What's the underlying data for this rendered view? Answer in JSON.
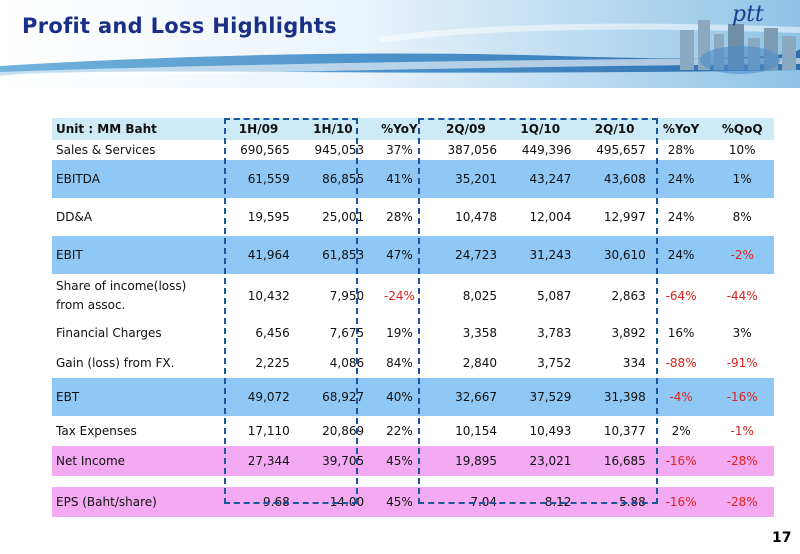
{
  "title": "Profit and Loss Highlights",
  "logo_text": "ptt",
  "page_number": "17",
  "table": {
    "headers": [
      "Unit : MM Baht",
      "1H/09",
      "1H/10",
      "%YoY",
      "2Q/09",
      "1Q/10",
      "2Q/10",
      "%YoY",
      "%QoQ"
    ],
    "rows": [
      {
        "label": "Sales & Services",
        "values": [
          "690,565",
          "945,053",
          "37%",
          "387,056",
          "449,396",
          "495,657",
          "28%",
          "10%"
        ]
      },
      {
        "label": "EBITDA",
        "values": [
          "61,559",
          "86,855",
          "41%",
          "35,201",
          "43,247",
          "43,608",
          "24%",
          "1%"
        ]
      },
      {
        "label": "DD&A",
        "values": [
          "19,595",
          "25,001",
          "28%",
          "10,478",
          "12,004",
          "12,997",
          "24%",
          "8%"
        ]
      },
      {
        "label": "EBIT",
        "values": [
          "41,964",
          "61,853",
          "47%",
          "24,723",
          "31,243",
          "30,610",
          "24%",
          "-2%"
        ]
      },
      {
        "label": "Share of income(loss)",
        "label2": "from assoc.",
        "values": [
          "10,432",
          "7,950",
          "-24%",
          "8,025",
          "5,087",
          "2,863",
          "-64%",
          "-44%"
        ]
      },
      {
        "label": "Financial Charges",
        "values": [
          "6,456",
          "7,675",
          "19%",
          "3,358",
          "3,783",
          "3,892",
          "16%",
          "3%"
        ]
      },
      {
        "label": "Gain (loss) from FX.",
        "values": [
          "2,225",
          "4,086",
          "84%",
          "2,840",
          "3,752",
          "334",
          "-88%",
          "-91%"
        ]
      },
      {
        "label": "EBT",
        "values": [
          "49,072",
          "68,927",
          "40%",
          "32,667",
          "37,529",
          "31,398",
          "-4%",
          "-16%"
        ]
      },
      {
        "label": "Tax Expenses",
        "values": [
          "17,110",
          "20,869",
          "22%",
          "10,154",
          "10,493",
          "10,377",
          "2%",
          "-1%"
        ]
      },
      {
        "label": "Net Income",
        "values": [
          "27,344",
          "39,705",
          "45%",
          "19,895",
          "23,021",
          "16,685",
          "-16%",
          "-28%"
        ]
      },
      {
        "label": "EPS (Baht/share)",
        "values": [
          "9.68",
          "14.00",
          "45%",
          "7.04",
          "8.12",
          "5.88",
          "-16%",
          "-28%"
        ]
      }
    ]
  },
  "colors": {
    "title": "#1b2f86",
    "header_row": "#cdeaf6",
    "highlight_blue": "#8fc8f5",
    "highlight_pink": "#f3aaf3",
    "negative": "#e0211b",
    "dashed_box": "#1a56a0"
  }
}
